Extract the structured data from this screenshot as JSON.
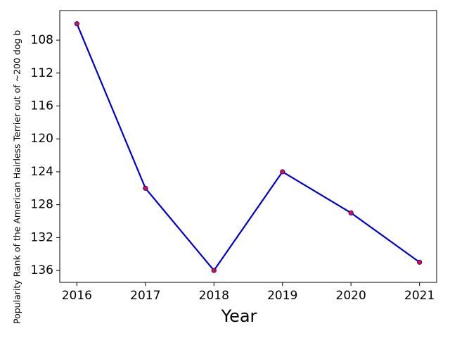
{
  "chart_data": {
    "type": "line",
    "x": [
      2016,
      2017,
      2018,
      2019,
      2020,
      2021
    ],
    "series": [
      {
        "name": "American Hairless Terrier",
        "color": "#0000cd",
        "marker_color": "#e0102a",
        "values": [
          106,
          126,
          136,
          124,
          129,
          135
        ]
      }
    ],
    "xlabel": "Year",
    "ylabel": "Popularity Rank of the American Hairless Terrier out of ~200 dog b",
    "xlim": [
      2015.75,
      2021.25
    ],
    "xticks": [
      2016,
      2017,
      2018,
      2019,
      2020,
      2021
    ],
    "ylim": [
      137.45,
      104.4
    ],
    "yticks": [
      108,
      112,
      116,
      120,
      124,
      128,
      132,
      136
    ],
    "inverted_y": true
  }
}
